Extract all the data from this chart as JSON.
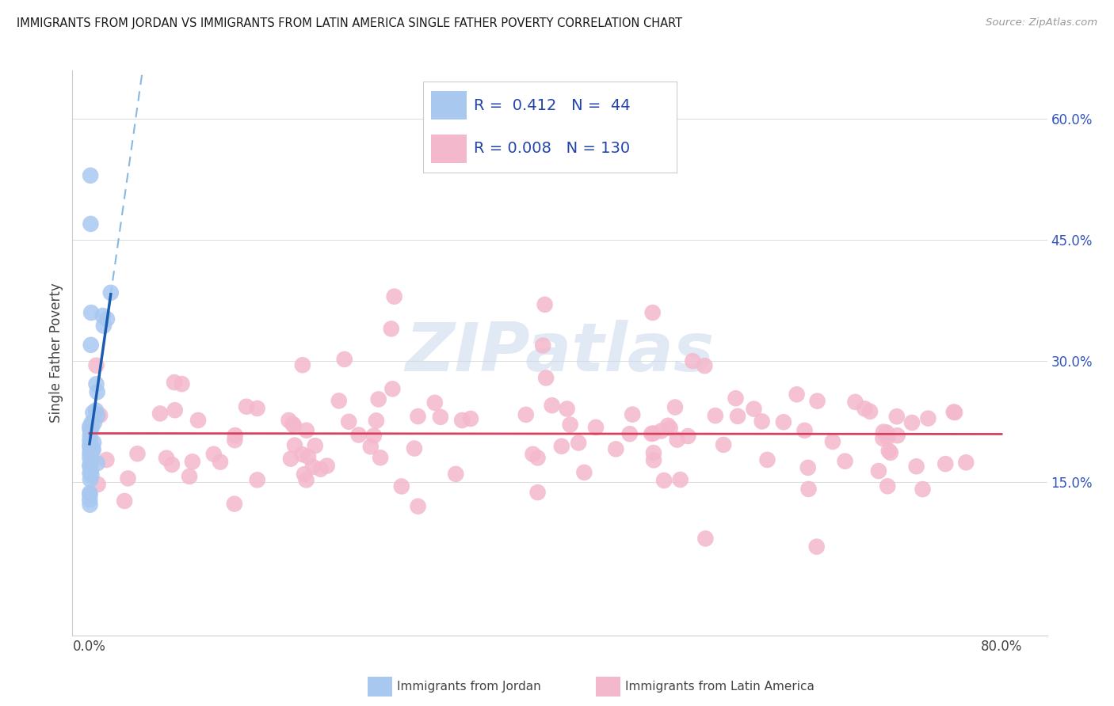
{
  "title": "IMMIGRANTS FROM JORDAN VS IMMIGRANTS FROM LATIN AMERICA SINGLE FATHER POVERTY CORRELATION CHART",
  "source": "Source: ZipAtlas.com",
  "ylabel": "Single Father Poverty",
  "y_ticks_vals": [
    0.15,
    0.3,
    0.45,
    0.6
  ],
  "y_ticks_right": [
    "15.0%",
    "30.0%",
    "45.0%",
    "60.0%"
  ],
  "x_tick_left": "0.0%",
  "x_tick_right": "80.0%",
  "xlim": [
    -0.015,
    0.84
  ],
  "ylim": [
    -0.04,
    0.66
  ],
  "legend_row1_r": "0.412",
  "legend_row1_n": "44",
  "legend_row2_r": "0.008",
  "legend_row2_n": "130",
  "jordan_fill": "#a8c8f0",
  "latin_fill": "#f4b8cc",
  "jordan_line": "#1a5cb0",
  "latin_line": "#d84060",
  "jordan_dash": "#88b8e0",
  "grid_color": "#dddddd",
  "title_color": "#1a1a1a",
  "source_color": "#999999",
  "tick_color": "#3355bb",
  "label_color": "#444444",
  "legend_text_color": "#2244aa",
  "watermark_color": "#c8d8ec",
  "bg_color": "#ffffff",
  "bottom_legend_jordan": "Immigrants from Jordan",
  "bottom_legend_latin": "Immigrants from Latin America"
}
